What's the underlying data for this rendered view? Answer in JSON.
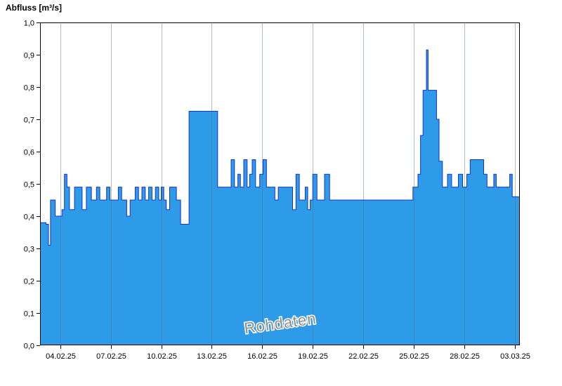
{
  "chart_data": {
    "type": "area-step",
    "title": "Abfluss [m³/s]",
    "ylabel": "Abfluss [m³/s]",
    "watermark": "Rohdaten",
    "x_tick_labels": [
      "04.02.25",
      "07.02.25",
      "10.02.25",
      "13.02.25",
      "16.02.25",
      "19.02.25",
      "22.02.25",
      "25.02.25",
      "28.02.25",
      "03.03.25"
    ],
    "x_tick_days": [
      1.2,
      4.2,
      7.2,
      10.2,
      13.2,
      16.2,
      19.2,
      22.2,
      25.2,
      28.2
    ],
    "x_domain_days": [
      0,
      28.5
    ],
    "y_tick_labels": [
      "0,0",
      "0,1",
      "0,2",
      "0,3",
      "0,4",
      "0,5",
      "0,6",
      "0,7",
      "0,8",
      "0,9",
      "1,0"
    ],
    "y_tick_values": [
      0,
      0.1,
      0.2,
      0.3,
      0.4,
      0.5,
      0.6,
      0.7,
      0.8,
      0.9,
      1.0
    ],
    "y_domain": [
      0,
      1
    ],
    "fill_color": "#2e9be8",
    "line_color": "#1633cc",
    "grid_color": "rgba(90,110,130,0.45)",
    "axis_color": "#000000",
    "watermark_color": "#8f8f8f",
    "points": [
      [
        0.0,
        0.38
      ],
      [
        0.35,
        0.375
      ],
      [
        0.5,
        0.31
      ],
      [
        0.62,
        0.45
      ],
      [
        0.9,
        0.4
      ],
      [
        1.3,
        0.42
      ],
      [
        1.45,
        0.53
      ],
      [
        1.6,
        0.49
      ],
      [
        1.75,
        0.42
      ],
      [
        2.05,
        0.49
      ],
      [
        2.5,
        0.42
      ],
      [
        2.75,
        0.49
      ],
      [
        3.05,
        0.45
      ],
      [
        3.35,
        0.49
      ],
      [
        3.55,
        0.45
      ],
      [
        3.95,
        0.49
      ],
      [
        4.15,
        0.45
      ],
      [
        4.65,
        0.49
      ],
      [
        4.85,
        0.45
      ],
      [
        5.15,
        0.4
      ],
      [
        5.35,
        0.45
      ],
      [
        5.65,
        0.49
      ],
      [
        5.85,
        0.45
      ],
      [
        6.05,
        0.49
      ],
      [
        6.25,
        0.45
      ],
      [
        6.45,
        0.49
      ],
      [
        6.65,
        0.45
      ],
      [
        6.85,
        0.49
      ],
      [
        7.05,
        0.45
      ],
      [
        7.2,
        0.49
      ],
      [
        7.35,
        0.45
      ],
      [
        7.5,
        0.42
      ],
      [
        7.7,
        0.49
      ],
      [
        8.1,
        0.45
      ],
      [
        8.35,
        0.375
      ],
      [
        8.85,
        0.725
      ],
      [
        10.55,
        0.49
      ],
      [
        11.35,
        0.575
      ],
      [
        11.55,
        0.49
      ],
      [
        11.75,
        0.53
      ],
      [
        11.9,
        0.49
      ],
      [
        12.1,
        0.575
      ],
      [
        12.3,
        0.49
      ],
      [
        12.45,
        0.53
      ],
      [
        12.6,
        0.575
      ],
      [
        12.8,
        0.49
      ],
      [
        13.05,
        0.53
      ],
      [
        13.25,
        0.575
      ],
      [
        13.45,
        0.49
      ],
      [
        13.95,
        0.45
      ],
      [
        14.15,
        0.49
      ],
      [
        15.0,
        0.42
      ],
      [
        15.2,
        0.53
      ],
      [
        15.4,
        0.45
      ],
      [
        15.75,
        0.49
      ],
      [
        15.9,
        0.42
      ],
      [
        16.05,
        0.45
      ],
      [
        16.2,
        0.53
      ],
      [
        16.45,
        0.45
      ],
      [
        16.9,
        0.53
      ],
      [
        17.2,
        0.45
      ],
      [
        22.15,
        0.49
      ],
      [
        22.45,
        0.53
      ],
      [
        22.6,
        0.65
      ],
      [
        22.75,
        0.79
      ],
      [
        22.95,
        0.915
      ],
      [
        23.05,
        0.79
      ],
      [
        23.55,
        0.7
      ],
      [
        23.7,
        0.57
      ],
      [
        23.9,
        0.49
      ],
      [
        24.2,
        0.53
      ],
      [
        24.45,
        0.49
      ],
      [
        24.85,
        0.53
      ],
      [
        25.1,
        0.49
      ],
      [
        25.35,
        0.53
      ],
      [
        25.55,
        0.575
      ],
      [
        26.35,
        0.53
      ],
      [
        26.55,
        0.49
      ],
      [
        26.95,
        0.53
      ],
      [
        27.1,
        0.49
      ],
      [
        27.9,
        0.53
      ],
      [
        28.05,
        0.46
      ],
      [
        28.5,
        0.46
      ]
    ]
  }
}
